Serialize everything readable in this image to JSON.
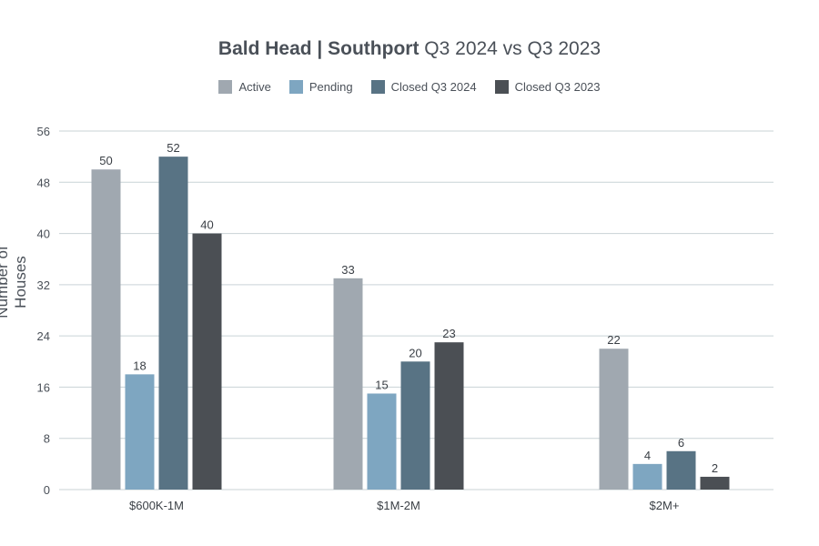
{
  "chart_data": {
    "type": "bar",
    "title_bold": "Bald Head | Southport",
    "title_rest": " Q3 2024 vs Q3 2023",
    "xlabel": "",
    "ylabel": "Number of Houses",
    "ylim": [
      0,
      56
    ],
    "yticks": [
      0,
      8,
      16,
      24,
      32,
      40,
      48,
      56
    ],
    "grid": true,
    "legend_position": "top-center",
    "categories": [
      "$600K-1M",
      "$1M-2M",
      "$2M+"
    ],
    "series": [
      {
        "name": "Active",
        "color": "#a0a8b0",
        "values": [
          50,
          33,
          22
        ]
      },
      {
        "name": "Pending",
        "color": "#7ea6c1",
        "values": [
          18,
          15,
          4
        ]
      },
      {
        "name": "Closed Q3 2024",
        "color": "#587384",
        "values": [
          52,
          20,
          6
        ]
      },
      {
        "name": "Closed Q3 2023",
        "color": "#4b4f54",
        "values": [
          40,
          23,
          2
        ]
      }
    ]
  }
}
